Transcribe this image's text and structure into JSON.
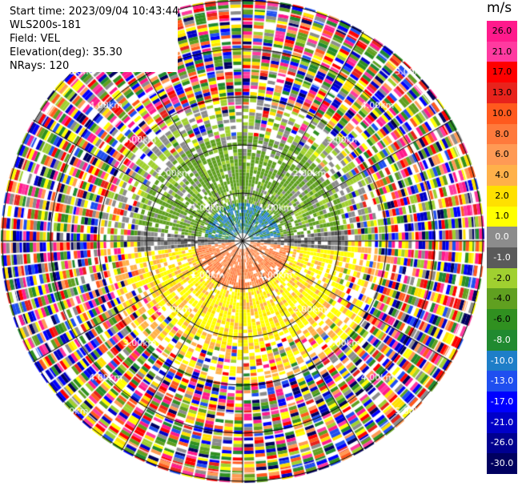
{
  "header": {
    "start_time": "Start time: 2023/09/04 10:43:44",
    "instrument": "WLS200s-181",
    "field": "Field: VEL",
    "elevation": "Elevation(deg): 35.30",
    "nrays": "NRays: 120"
  },
  "colorbar": {
    "unit": "m/s",
    "ticks": [
      "26.0",
      "21.0",
      "17.0",
      "13.0",
      "10.0",
      "8.0",
      "6.0",
      "4.0",
      "2.0",
      "1.0",
      "0.0",
      "-1.0",
      "-2.0",
      "-4.0",
      "-6.0",
      "-8.0",
      "-10.0",
      "-13.0",
      "-17.0",
      "-21.0",
      "-26.0",
      "-30.0"
    ],
    "colors": [
      "#ff1a8c",
      "#ff3aa0",
      "#ff0000",
      "#e8231c",
      "#ff5a1e",
      "#ff7a3c",
      "#ff9a55",
      "#ffb14a",
      "#ffe000",
      "#ffff00",
      "#8c8c8c",
      "#5a5a5a",
      "#a0d030",
      "#60a020",
      "#309020",
      "#208a30",
      "#1e7ec8",
      "#1f4ff0",
      "#0000ff",
      "#0000c8",
      "#000090",
      "#000060"
    ]
  },
  "chart_data": {
    "type": "polar-ppi",
    "title": "",
    "range_rings_km": [
      "1.00km",
      "2.00km",
      "3.00km",
      "4.00km",
      "5.00km"
    ],
    "value_range_ms": [
      -30,
      26
    ],
    "nrays": 120,
    "elevation_deg": 35.3,
    "field": "VEL"
  }
}
